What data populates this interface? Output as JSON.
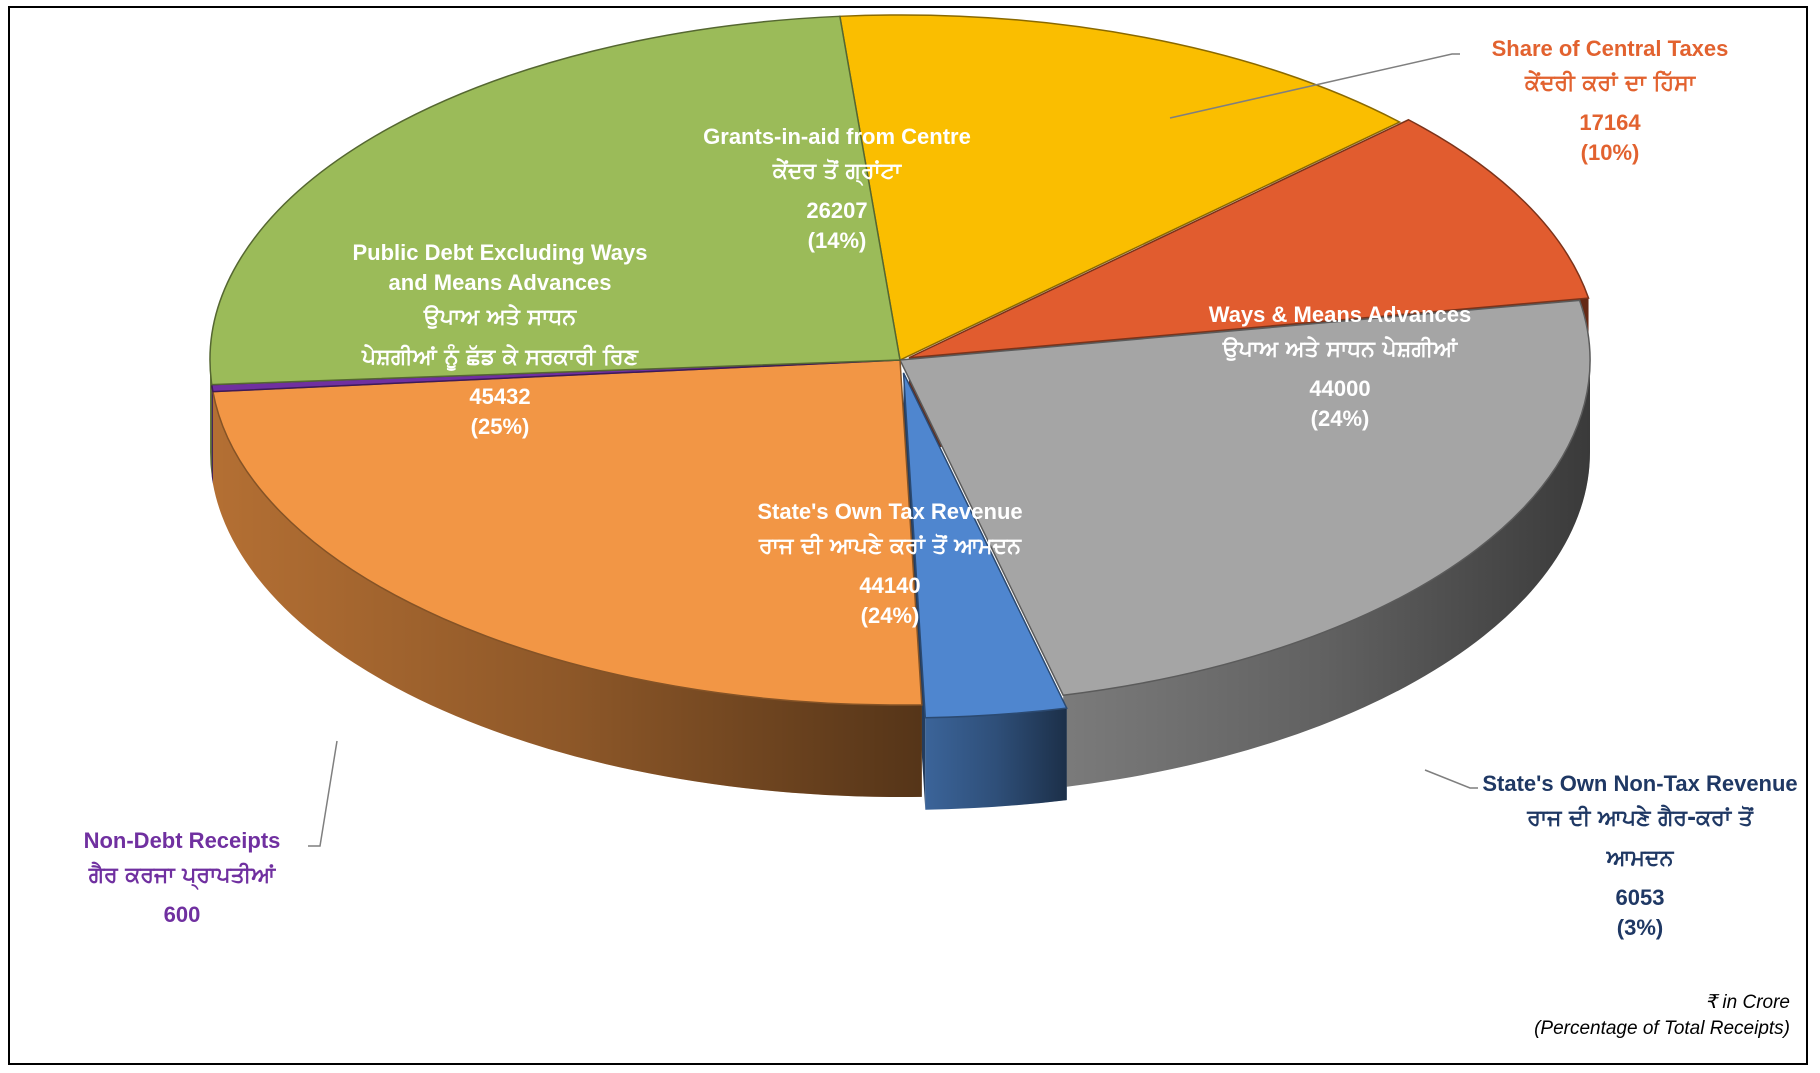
{
  "chart_data": {
    "type": "pie",
    "slices": [
      {
        "key": "grants",
        "label_en": "Grants-in-aid from Centre",
        "label_pa": "ਕੇਂਦਰ ਤੋਂ ਗ੍ਰਾਂਟਾ",
        "value": 26207,
        "percent": "(14%)",
        "color": "#FABE00",
        "label_color": "#FFFFFF"
      },
      {
        "key": "central_taxes",
        "label_en": "Share of Central Taxes",
        "label_pa": "ਕੇਂਦਰੀ ਕਰਾਂ ਦਾ ਹਿੱਸਾ",
        "value": 17164,
        "percent": "(10%)",
        "color": "#E15C2F",
        "label_color": "#E2622F"
      },
      {
        "key": "ways_means",
        "label_en": "Ways & Means Advances",
        "label_pa": "ਉਪਾਅ ਅਤੇ ਸਾਧਨ ਪੇਸ਼ਗੀਆਂ",
        "value": 44000,
        "percent": "(24%)",
        "color": "#A5A5A5",
        "label_color": "#FFFFFF"
      },
      {
        "key": "non_tax",
        "label_en": "State's Own Non-Tax Revenue",
        "label_pa": "ਰਾਜ ਦੀ ਆਪਣੇ ਗੈਰ-ਕਰਾਂ ਤੋਂ ਆਮਦਨ",
        "value": 6053,
        "percent": "(3%)",
        "color": "#4F86CF",
        "label_color": "#1F3864"
      },
      {
        "key": "own_tax",
        "label_en": "State's Own Tax Revenue",
        "label_pa": "ਰਾਜ ਦੀ ਆਪਣੇ ਕਰਾਂ ਤੋਂ ਆਮਦਨ",
        "value": 44140,
        "percent": "(24%)",
        "color": "#F29645",
        "label_color": "#FFFFFF"
      },
      {
        "key": "non_debt",
        "label_en": "Non-Debt Receipts",
        "label_pa": "ਗੈਰ ਕਰਜਾ ਪ੍ਰਾਪਤੀਆਂ",
        "value": 600,
        "percent": "",
        "color": "#7030A0",
        "label_color": "#7030A0"
      },
      {
        "key": "public_debt",
        "label_en": "Public Debt Excluding Ways and Means Advances",
        "label_pa": "ਉਪਾਅ ਅਤੇ ਸਾਧਨ ਪੇਸ਼ਗੀਆਂ ਨੂੰ ਛੱਡ ਕੇ ਸਰਕਾਰੀ ਰਿਣ",
        "value": 45432,
        "percent": "(25%)",
        "color": "#9BBB59",
        "label_color": "#FFFFFF"
      }
    ],
    "label_text": {
      "grants": {
        "en_lines": [
          "Grants-in-aid from Centre"
        ],
        "pa_lines": [
          "ਕੇਂਦਰ ਤੋਂ ਗ੍ਰਾਂਟਾ"
        ]
      },
      "central_taxes": {
        "en_lines": [
          "Share of Central Taxes"
        ],
        "pa_lines": [
          "ਕੇਂਦਰੀ ਕਰਾਂ ਦਾ ਹਿੱਸਾ"
        ]
      },
      "ways_means": {
        "en_lines": [
          "Ways & Means Advances"
        ],
        "pa_lines": [
          "ਉਪਾਅ ਅਤੇ ਸਾਧਨ ਪੇਸ਼ਗੀਆਂ"
        ]
      },
      "non_tax": {
        "en_lines": [
          "State's Own Non-Tax Revenue"
        ],
        "pa_lines": [
          "ਰਾਜ ਦੀ ਆਪਣੇ ਗੈਰ-ਕਰਾਂ ਤੋਂ",
          "ਆਮਦਨ"
        ]
      },
      "own_tax": {
        "en_lines": [
          "State's Own Tax Revenue"
        ],
        "pa_lines": [
          "ਰਾਜ ਦੀ ਆਪਣੇ ਕਰਾਂ ਤੋਂ ਆਮਦਨ"
        ]
      },
      "non_debt": {
        "en_lines": [
          "Non-Debt Receipts"
        ],
        "pa_lines": [
          "ਗੈਰ ਕਰਜਾ ਪ੍ਰਾਪਤੀਆਂ"
        ]
      },
      "public_debt": {
        "en_lines": [
          "Public Debt Excluding Ways",
          "and Means Advances"
        ],
        "pa_lines": [
          "ਉਪਾਅ ਅਤੇ ਸਾਧਨ",
          "ਪੇਸ਼ਗੀਆਂ ਨੂੰ ਛੱਡ ਕੇ ਸਰਕਾਰੀ ਰਿਣ"
        ]
      }
    },
    "unit_note": "₹ in Crore",
    "percent_note": "(Percentage of Total Receipts)"
  }
}
